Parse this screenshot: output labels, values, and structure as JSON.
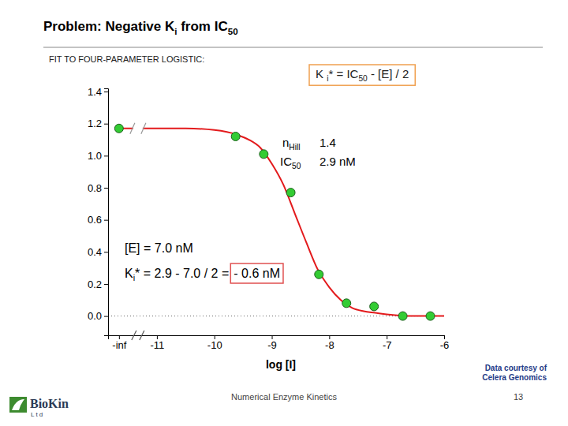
{
  "chart_data": {
    "type": "scatter",
    "title": [
      "Problem: Negative K",
      "i",
      " from IC",
      "50"
    ],
    "subtitle": "FIT TO FOUR-PARAMETER LOGISTIC:",
    "xlabel": "log [I]",
    "xlim": [
      -11.85,
      -6
    ],
    "ylim": [
      -0.12,
      1.42
    ],
    "xticks": [
      {
        "value": -11.66,
        "label": "-inf"
      },
      -11,
      -10,
      -9,
      -8,
      -7,
      -6
    ],
    "yticks": [
      {
        "value": 0,
        "label": "0.0"
      },
      0.2,
      0.4,
      0.6,
      0.8,
      {
        "value": 1,
        "label": "1.0"
      },
      1.2,
      1.4
    ],
    "grid": false,
    "series": [
      {
        "type": "scatter",
        "color": "#33cc33",
        "marker": "circle",
        "x": [
          -11.66,
          -9.63,
          -9.14,
          -8.67,
          -8.18,
          -7.7,
          -7.22,
          -6.72,
          -6.24
        ],
        "values": [
          1.17,
          1.12,
          1.01,
          0.77,
          0.26,
          0.08,
          0.06,
          0,
          0
        ]
      },
      {
        "type": "line",
        "color": "#e31a1c",
        "line_style": "solid",
        "x": [
          -11.6,
          -11,
          -10.5,
          -10,
          -9.6,
          -9.4,
          -9.2,
          -9,
          -8.8,
          -8.6,
          -8.4,
          -8.2,
          -8,
          -7.8,
          -7.6,
          -7.4,
          -7.2,
          -7,
          -6.6,
          -6.2,
          -6
        ],
        "values": [
          1.17,
          1.17,
          1.17,
          1.16,
          1.13,
          1.1,
          1.05,
          0.95,
          0.82,
          0.64,
          0.46,
          0.29,
          0.18,
          0.1,
          0.05,
          0.03,
          0.02,
          0.01,
          0,
          0,
          0
        ]
      }
    ],
    "annotations": [
      [
        "K ",
        "i",
        "* = IC",
        "50",
        " - [E] / 2"
      ],
      [
        "n",
        "Hill"
      ],
      [
        "1.4"
      ],
      [
        "IC",
        "50"
      ],
      [
        "2.9 nM"
      ],
      [
        "[E] = 7.0 nM"
      ],
      [
        "K",
        "i",
        "* = 2.9 - 7.0 / 2 = "
      ],
      [
        "- 0.6 nM"
      ]
    ],
    "footer": {
      "credit": [
        "Data courtesy of",
        "Celera Genomics"
      ],
      "center": "Numerical Enzyme Kinetics",
      "page": "13",
      "logo": [
        "BioKin",
        "Ltd"
      ]
    }
  }
}
